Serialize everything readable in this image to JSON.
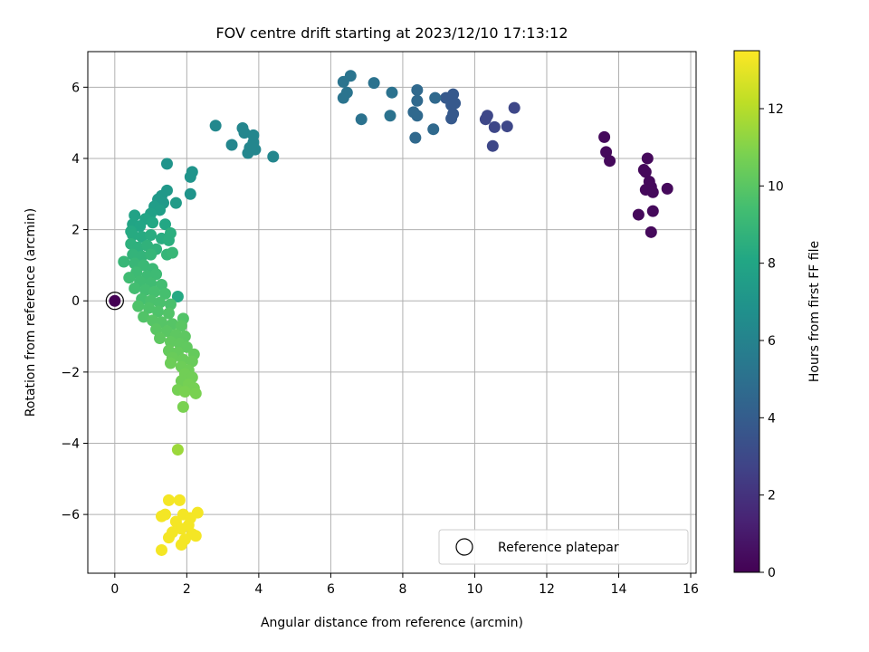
{
  "chart_data": {
    "type": "scatter",
    "title": "FOV centre drift starting at 2023/12/10 17:13:12",
    "xlabel": "Angular distance from reference (arcmin)",
    "ylabel": "Rotation from reference (arcmin)",
    "xlim": [
      -0.75,
      16.15
    ],
    "ylim": [
      -7.65,
      7.0
    ],
    "xticks": [
      0,
      2,
      4,
      6,
      8,
      10,
      12,
      14,
      16
    ],
    "yticks": [
      -6,
      -4,
      -2,
      0,
      2,
      4,
      6
    ],
    "grid": true,
    "legend": {
      "position": "lower-right",
      "entries": [
        "Reference platepar"
      ]
    },
    "colorbar": {
      "label": "Hours from first FF file",
      "colormap": "viridis",
      "range": [
        0,
        13.5
      ],
      "ticks": [
        0,
        2,
        4,
        6,
        8,
        10,
        12
      ]
    },
    "reference_point": {
      "x": 0,
      "y": 0,
      "t": 0
    },
    "series": [
      {
        "points": [
          {
            "x": 13.6,
            "y": 4.6,
            "t": 0.3
          },
          {
            "x": 13.65,
            "y": 4.18,
            "t": 0.3
          },
          {
            "x": 13.75,
            "y": 3.93,
            "t": 0.3
          },
          {
            "x": 14.8,
            "y": 4.0,
            "t": 0.3
          },
          {
            "x": 14.7,
            "y": 3.68,
            "t": 0.3
          },
          {
            "x": 14.75,
            "y": 3.62,
            "t": 0.3
          },
          {
            "x": 14.85,
            "y": 3.35,
            "t": 0.3
          },
          {
            "x": 14.9,
            "y": 3.2,
            "t": 0.3
          },
          {
            "x": 14.75,
            "y": 3.12,
            "t": 0.3
          },
          {
            "x": 14.95,
            "y": 3.05,
            "t": 0.3
          },
          {
            "x": 15.35,
            "y": 3.15,
            "t": 0.3
          },
          {
            "x": 14.55,
            "y": 2.42,
            "t": 0.3
          },
          {
            "x": 14.95,
            "y": 2.52,
            "t": 0.3
          },
          {
            "x": 14.9,
            "y": 1.93,
            "t": 0.3
          },
          {
            "x": 10.3,
            "y": 5.1,
            "t": 2.9
          },
          {
            "x": 10.35,
            "y": 5.2,
            "t": 2.9
          },
          {
            "x": 10.55,
            "y": 4.88,
            "t": 2.9
          },
          {
            "x": 10.5,
            "y": 4.35,
            "t": 2.9
          },
          {
            "x": 10.9,
            "y": 4.9,
            "t": 2.9
          },
          {
            "x": 11.1,
            "y": 5.42,
            "t": 2.9
          },
          {
            "x": 9.2,
            "y": 5.7,
            "t": 3.8
          },
          {
            "x": 9.35,
            "y": 5.5,
            "t": 3.8
          },
          {
            "x": 9.4,
            "y": 5.8,
            "t": 3.8
          },
          {
            "x": 9.35,
            "y": 5.12,
            "t": 3.8
          },
          {
            "x": 9.4,
            "y": 5.25,
            "t": 3.8
          },
          {
            "x": 9.45,
            "y": 5.55,
            "t": 3.8
          },
          {
            "x": 8.9,
            "y": 5.7,
            "t": 4.6
          },
          {
            "x": 8.85,
            "y": 4.82,
            "t": 4.6
          },
          {
            "x": 8.4,
            "y": 5.92,
            "t": 4.6
          },
          {
            "x": 8.4,
            "y": 5.62,
            "t": 4.6
          },
          {
            "x": 8.3,
            "y": 5.3,
            "t": 4.6
          },
          {
            "x": 8.4,
            "y": 5.2,
            "t": 4.6
          },
          {
            "x": 8.35,
            "y": 4.58,
            "t": 4.6
          },
          {
            "x": 7.7,
            "y": 5.85,
            "t": 5.1
          },
          {
            "x": 7.65,
            "y": 5.2,
            "t": 5.1
          },
          {
            "x": 7.2,
            "y": 6.12,
            "t": 5.1
          },
          {
            "x": 6.85,
            "y": 5.1,
            "t": 5.1
          },
          {
            "x": 6.55,
            "y": 6.32,
            "t": 5.2
          },
          {
            "x": 6.35,
            "y": 6.15,
            "t": 5.2
          },
          {
            "x": 6.45,
            "y": 5.85,
            "t": 5.2
          },
          {
            "x": 6.35,
            "y": 5.7,
            "t": 5.2
          },
          {
            "x": 4.4,
            "y": 4.05,
            "t": 6.2
          },
          {
            "x": 3.9,
            "y": 4.25,
            "t": 6.2
          },
          {
            "x": 3.85,
            "y": 4.45,
            "t": 6.2
          },
          {
            "x": 3.85,
            "y": 4.65,
            "t": 6.2
          },
          {
            "x": 3.75,
            "y": 4.3,
            "t": 6.2
          },
          {
            "x": 3.7,
            "y": 4.15,
            "t": 6.2
          },
          {
            "x": 3.6,
            "y": 4.72,
            "t": 6.2
          },
          {
            "x": 3.55,
            "y": 4.85,
            "t": 6.2
          },
          {
            "x": 3.25,
            "y": 4.38,
            "t": 6.2
          },
          {
            "x": 2.8,
            "y": 4.92,
            "t": 6.3
          },
          {
            "x": 1.45,
            "y": 3.85,
            "t": 7.0
          },
          {
            "x": 2.15,
            "y": 3.62,
            "t": 7.0
          },
          {
            "x": 2.1,
            "y": 3.48,
            "t": 7.0
          },
          {
            "x": 2.1,
            "y": 3.0,
            "t": 7.0
          },
          {
            "x": 1.45,
            "y": 3.1,
            "t": 7.2
          },
          {
            "x": 1.3,
            "y": 2.95,
            "t": 7.2
          },
          {
            "x": 1.2,
            "y": 2.85,
            "t": 7.3
          },
          {
            "x": 1.35,
            "y": 2.75,
            "t": 7.3
          },
          {
            "x": 1.7,
            "y": 2.75,
            "t": 7.4
          },
          {
            "x": 1.1,
            "y": 2.65,
            "t": 7.5
          },
          {
            "x": 1.25,
            "y": 2.55,
            "t": 7.6
          },
          {
            "x": 1.0,
            "y": 2.45,
            "t": 7.7
          },
          {
            "x": 0.55,
            "y": 2.4,
            "t": 7.8
          },
          {
            "x": 0.85,
            "y": 2.3,
            "t": 7.9
          },
          {
            "x": 0.5,
            "y": 2.15,
            "t": 7.9
          },
          {
            "x": 0.7,
            "y": 2.1,
            "t": 8.0
          },
          {
            "x": 1.05,
            "y": 2.2,
            "t": 8.1
          },
          {
            "x": 1.4,
            "y": 2.15,
            "t": 8.1
          },
          {
            "x": 0.45,
            "y": 1.95,
            "t": 8.2
          },
          {
            "x": 0.5,
            "y": 1.85,
            "t": 8.3
          },
          {
            "x": 0.75,
            "y": 1.8,
            "t": 8.3
          },
          {
            "x": 1.0,
            "y": 1.85,
            "t": 8.4
          },
          {
            "x": 1.3,
            "y": 1.75,
            "t": 8.4
          },
          {
            "x": 1.5,
            "y": 1.7,
            "t": 8.5
          },
          {
            "x": 1.55,
            "y": 1.9,
            "t": 8.5
          },
          {
            "x": 0.45,
            "y": 1.6,
            "t": 8.6
          },
          {
            "x": 0.65,
            "y": 1.5,
            "t": 8.6
          },
          {
            "x": 0.9,
            "y": 1.55,
            "t": 8.7
          },
          {
            "x": 1.15,
            "y": 1.45,
            "t": 8.7
          },
          {
            "x": 0.5,
            "y": 1.3,
            "t": 8.8
          },
          {
            "x": 0.75,
            "y": 1.25,
            "t": 8.8
          },
          {
            "x": 1.0,
            "y": 1.3,
            "t": 8.9
          },
          {
            "x": 1.45,
            "y": 1.3,
            "t": 8.9
          },
          {
            "x": 1.6,
            "y": 1.35,
            "t": 9.0
          },
          {
            "x": 0.25,
            "y": 1.1,
            "t": 9.0
          },
          {
            "x": 0.55,
            "y": 1.05,
            "t": 9.0
          },
          {
            "x": 0.8,
            "y": 1.0,
            "t": 9.1
          },
          {
            "x": 1.05,
            "y": 0.9,
            "t": 9.1
          },
          {
            "x": 0.6,
            "y": 0.8,
            "t": 9.2
          },
          {
            "x": 0.9,
            "y": 0.7,
            "t": 9.2
          },
          {
            "x": 1.15,
            "y": 0.75,
            "t": 9.2
          },
          {
            "x": 0.4,
            "y": 0.65,
            "t": 9.3
          },
          {
            "x": 0.7,
            "y": 0.55,
            "t": 9.3
          },
          {
            "x": 1.0,
            "y": 0.5,
            "t": 9.3
          },
          {
            "x": 1.3,
            "y": 0.45,
            "t": 9.4
          },
          {
            "x": 0.55,
            "y": 0.35,
            "t": 9.4
          },
          {
            "x": 0.85,
            "y": 0.3,
            "t": 9.4
          },
          {
            "x": 1.1,
            "y": 0.25,
            "t": 9.5
          },
          {
            "x": 1.4,
            "y": 0.2,
            "t": 9.5
          },
          {
            "x": 1.75,
            "y": 0.12,
            "t": 8.2
          },
          {
            "x": 0.75,
            "y": 0.05,
            "t": 9.5
          },
          {
            "x": 1.0,
            "y": 0.0,
            "t": 9.6
          },
          {
            "x": 1.25,
            "y": -0.05,
            "t": 9.6
          },
          {
            "x": 1.55,
            "y": -0.1,
            "t": 9.6
          },
          {
            "x": 0.65,
            "y": -0.15,
            "t": 9.7
          },
          {
            "x": 0.95,
            "y": -0.2,
            "t": 9.7
          },
          {
            "x": 1.2,
            "y": -0.3,
            "t": 9.7
          },
          {
            "x": 1.5,
            "y": -0.35,
            "t": 9.8
          },
          {
            "x": 1.9,
            "y": -0.5,
            "t": 9.8
          },
          {
            "x": 0.8,
            "y": -0.45,
            "t": 9.8
          },
          {
            "x": 1.05,
            "y": -0.55,
            "t": 9.9
          },
          {
            "x": 1.3,
            "y": -0.6,
            "t": 9.9
          },
          {
            "x": 1.6,
            "y": -0.65,
            "t": 9.9
          },
          {
            "x": 1.85,
            "y": -0.7,
            "t": 10.0
          },
          {
            "x": 1.15,
            "y": -0.8,
            "t": 10.0
          },
          {
            "x": 1.45,
            "y": -0.85,
            "t": 10.0
          },
          {
            "x": 1.7,
            "y": -0.95,
            "t": 10.1
          },
          {
            "x": 1.95,
            "y": -1.0,
            "t": 10.1
          },
          {
            "x": 1.25,
            "y": -1.05,
            "t": 10.1
          },
          {
            "x": 1.55,
            "y": -1.15,
            "t": 10.2
          },
          {
            "x": 1.8,
            "y": -1.2,
            "t": 10.2
          },
          {
            "x": 2.0,
            "y": -1.3,
            "t": 10.2
          },
          {
            "x": 1.5,
            "y": -1.4,
            "t": 10.3
          },
          {
            "x": 1.75,
            "y": -1.45,
            "t": 10.3
          },
          {
            "x": 2.2,
            "y": -1.5,
            "t": 10.3
          },
          {
            "x": 1.6,
            "y": -1.6,
            "t": 10.4
          },
          {
            "x": 1.9,
            "y": -1.65,
            "t": 10.4
          },
          {
            "x": 2.15,
            "y": -1.7,
            "t": 10.4
          },
          {
            "x": 1.55,
            "y": -1.75,
            "t": 10.5
          },
          {
            "x": 1.85,
            "y": -1.85,
            "t": 10.5
          },
          {
            "x": 2.05,
            "y": -1.95,
            "t": 10.5
          },
          {
            "x": 1.95,
            "y": -2.05,
            "t": 10.6
          },
          {
            "x": 2.15,
            "y": -2.15,
            "t": 10.6
          },
          {
            "x": 1.85,
            "y": -2.25,
            "t": 10.6
          },
          {
            "x": 2.05,
            "y": -2.35,
            "t": 10.7
          },
          {
            "x": 2.2,
            "y": -2.45,
            "t": 10.7
          },
          {
            "x": 1.75,
            "y": -2.5,
            "t": 10.7
          },
          {
            "x": 1.95,
            "y": -2.55,
            "t": 10.8
          },
          {
            "x": 2.25,
            "y": -2.6,
            "t": 10.8
          },
          {
            "x": 1.9,
            "y": -2.98,
            "t": 10.8
          },
          {
            "x": 1.75,
            "y": -4.18,
            "t": 11.5
          },
          {
            "x": 1.5,
            "y": -5.6,
            "t": 13.3
          },
          {
            "x": 1.8,
            "y": -5.6,
            "t": 13.3
          },
          {
            "x": 1.3,
            "y": -6.05,
            "t": 13.3
          },
          {
            "x": 1.4,
            "y": -6.0,
            "t": 13.3
          },
          {
            "x": 1.9,
            "y": -6.0,
            "t": 13.3
          },
          {
            "x": 2.3,
            "y": -5.95,
            "t": 13.3
          },
          {
            "x": 2.1,
            "y": -6.1,
            "t": 13.3
          },
          {
            "x": 1.7,
            "y": -6.2,
            "t": 13.3
          },
          {
            "x": 2.05,
            "y": -6.3,
            "t": 13.3
          },
          {
            "x": 1.85,
            "y": -6.4,
            "t": 13.3
          },
          {
            "x": 1.6,
            "y": -6.5,
            "t": 13.3
          },
          {
            "x": 2.15,
            "y": -6.55,
            "t": 13.3
          },
          {
            "x": 2.25,
            "y": -6.6,
            "t": 13.3
          },
          {
            "x": 1.5,
            "y": -6.65,
            "t": 13.3
          },
          {
            "x": 1.95,
            "y": -6.7,
            "t": 13.3
          },
          {
            "x": 1.85,
            "y": -6.85,
            "t": 13.3
          },
          {
            "x": 1.3,
            "y": -7.0,
            "t": 13.3
          }
        ]
      }
    ]
  }
}
